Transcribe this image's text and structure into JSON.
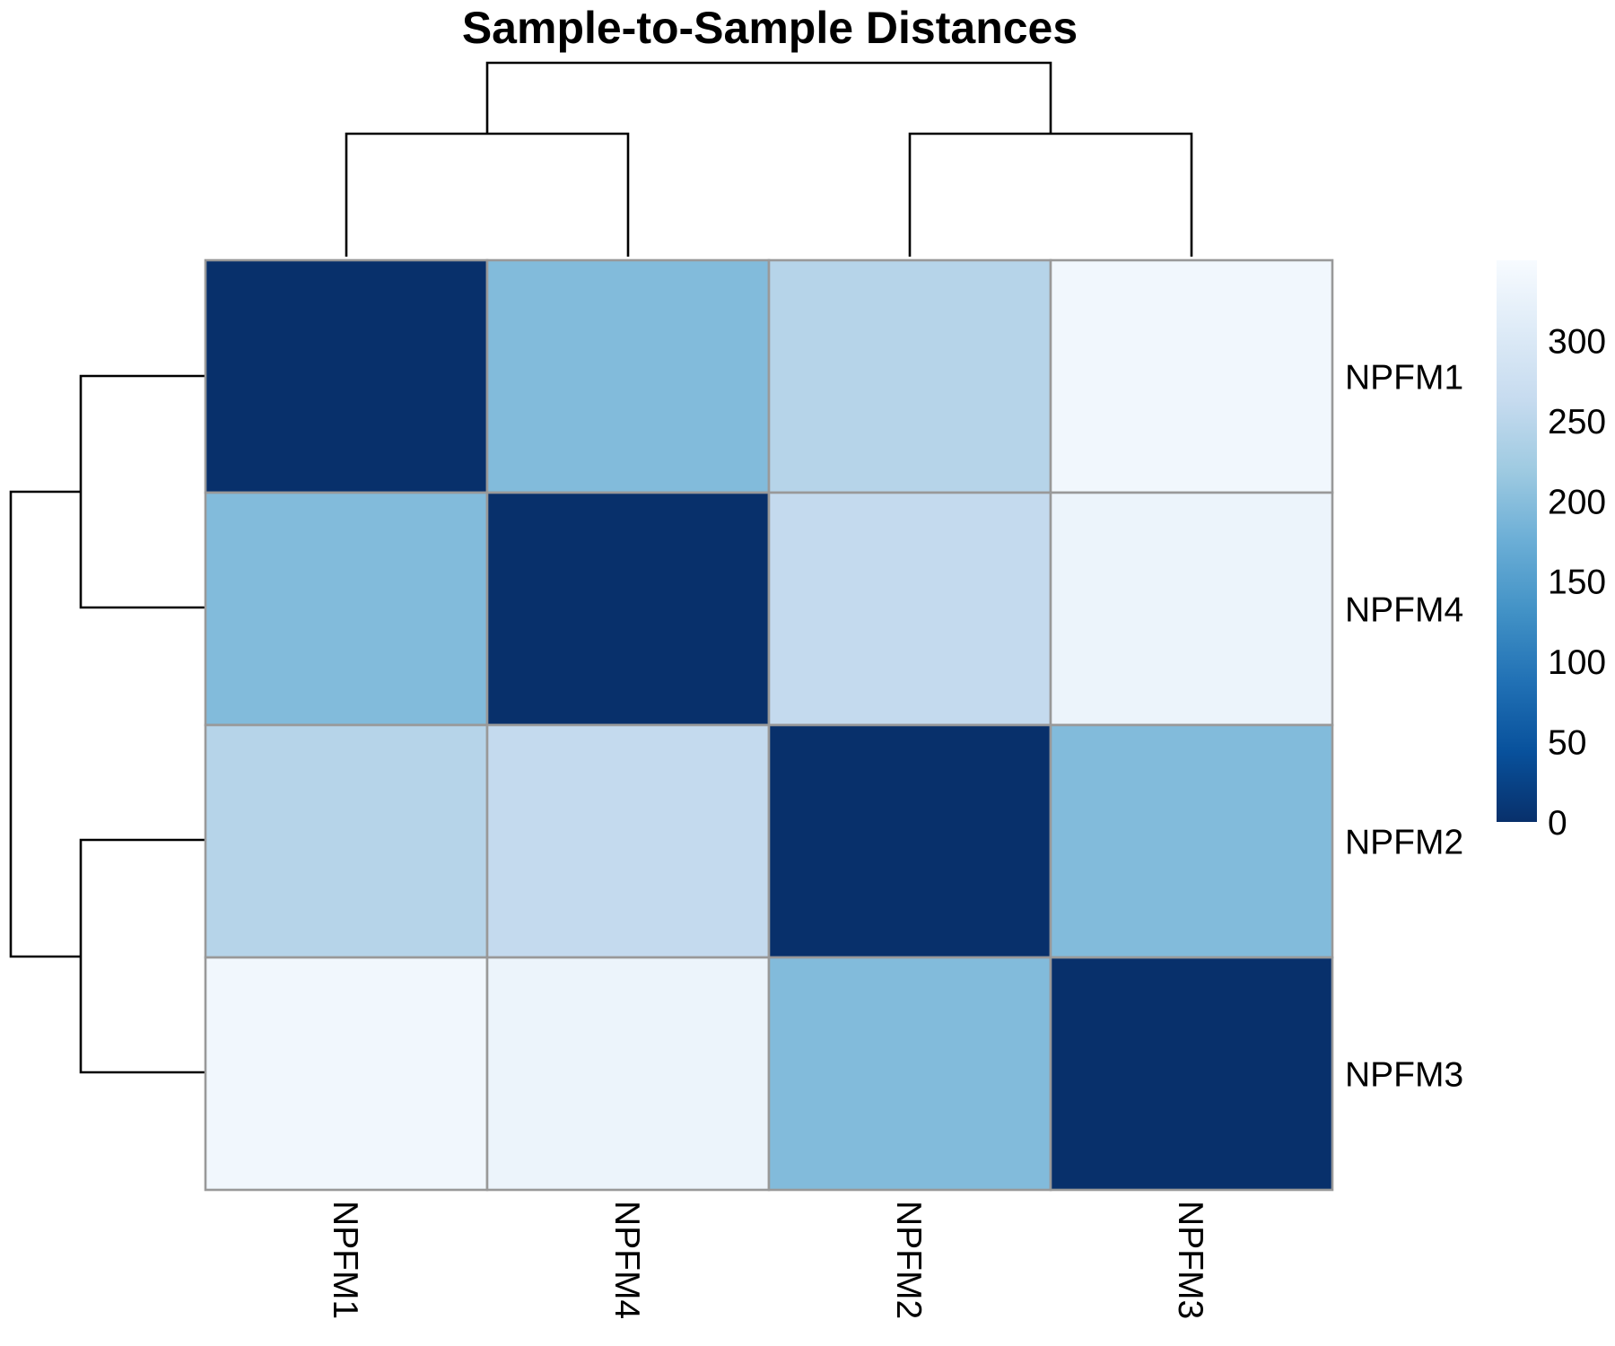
{
  "chart_data": {
    "type": "heatmap",
    "title": "Sample-to-Sample Distances",
    "rows": [
      "NPFM1",
      "NPFM4",
      "NPFM2",
      "NPFM3"
    ],
    "cols": [
      "NPFM1",
      "NPFM4",
      "NPFM2",
      "NPFM3"
    ],
    "values": [
      [
        0,
        195,
        245,
        340
      ],
      [
        195,
        0,
        260,
        330
      ],
      [
        245,
        260,
        0,
        195
      ],
      [
        340,
        330,
        195,
        0
      ]
    ],
    "colorbar": {
      "range": [
        0,
        350
      ],
      "ticks": [
        0,
        50,
        100,
        150,
        200,
        250,
        300
      ],
      "tick_labels": [
        "0",
        "50",
        "100",
        "150",
        "200",
        "250",
        "300"
      ],
      "colors": [
        "#08306B",
        "#08519C",
        "#2171B5",
        "#4292C6",
        "#6BAED6",
        "#9ECAE1",
        "#C6DBEF",
        "#DEEBF7",
        "#F7FBFF"
      ]
    },
    "dendrogram": {
      "columns": "((NPFM1,NPFM4),(NPFM2,NPFM3))",
      "rows": "((NPFM1,NPFM4),(NPFM2,NPFM3))"
    },
    "grid": false
  }
}
